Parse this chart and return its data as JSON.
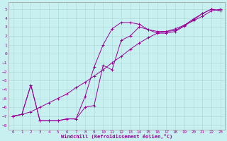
{
  "xlabel": "Windchill (Refroidissement éolien,°C)",
  "bg_color": "#c8f0f0",
  "grid_color": "#a8d8d8",
  "line_color": "#990099",
  "xmin": -0.5,
  "xmax": 23.5,
  "ymin": -8.5,
  "ymax": 5.8,
  "yticks": [
    5,
    4,
    3,
    2,
    1,
    0,
    -1,
    -2,
    -3,
    -4,
    -5,
    -6,
    -7,
    -8
  ],
  "xticks": [
    0,
    1,
    2,
    3,
    4,
    5,
    6,
    7,
    8,
    9,
    10,
    11,
    12,
    13,
    14,
    15,
    16,
    17,
    18,
    19,
    20,
    21,
    22,
    23
  ],
  "line1_x": [
    0,
    1,
    2,
    3,
    4,
    5,
    6,
    7,
    8,
    9,
    10,
    11,
    12,
    13,
    14,
    15,
    16,
    17,
    18,
    19,
    20,
    21,
    22,
    23
  ],
  "line1_y": [
    -7.0,
    -6.8,
    -6.5,
    -6.0,
    -5.5,
    -5.0,
    -4.5,
    -3.8,
    -3.2,
    -2.5,
    -1.8,
    -1.0,
    -0.3,
    0.5,
    1.2,
    1.8,
    2.3,
    2.5,
    2.8,
    3.2,
    3.7,
    4.2,
    4.8,
    5.0
  ],
  "line2_x": [
    0,
    1,
    2,
    3,
    4,
    5,
    6,
    7,
    8,
    9,
    10,
    11,
    12,
    13,
    14,
    15,
    16,
    17,
    18,
    19,
    20,
    21,
    22,
    23
  ],
  "line2_y": [
    -7.0,
    -6.8,
    -3.5,
    -7.5,
    -7.5,
    -7.5,
    -7.3,
    -7.3,
    -4.8,
    -1.5,
    1.0,
    2.8,
    3.5,
    3.5,
    3.3,
    2.7,
    2.3,
    2.3,
    2.5,
    3.1,
    3.8,
    4.5,
    5.0,
    4.8
  ],
  "line3_x": [
    0,
    1,
    2,
    3,
    4,
    5,
    6,
    7,
    8,
    9,
    10,
    11,
    12,
    13,
    14,
    15,
    16,
    17,
    18,
    19,
    20,
    21,
    22,
    23
  ],
  "line3_y": [
    -7.0,
    -6.8,
    -3.5,
    -7.5,
    -7.5,
    -7.5,
    -7.3,
    -7.3,
    -6.0,
    -5.8,
    -1.3,
    -1.8,
    1.5,
    2.0,
    3.0,
    2.7,
    2.5,
    2.5,
    2.6,
    3.2,
    3.9,
    4.5,
    5.0,
    4.8
  ]
}
